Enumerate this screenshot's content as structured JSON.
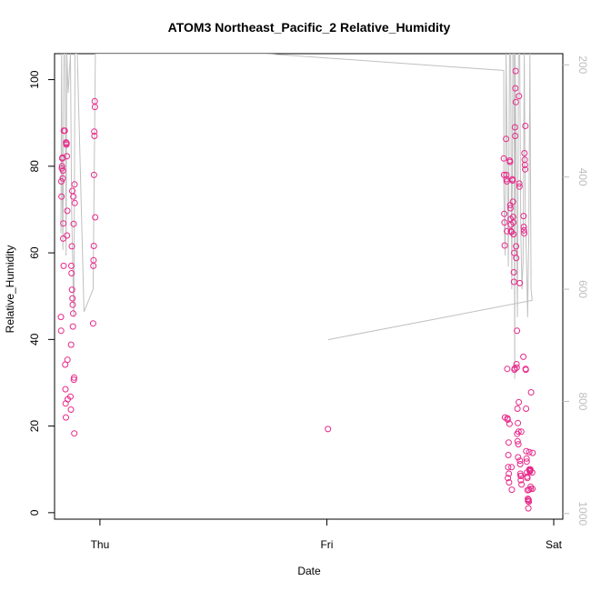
{
  "chart_data": {
    "type": "scatter",
    "title": "ATOM3 Northeast_Pacific_2 Relative_Humidity",
    "xlabel": "Date",
    "ylabel": "Relative_Humidity",
    "x_axis": {
      "type": "date",
      "ticks": [
        {
          "label": "Thu",
          "value": 0
        },
        {
          "label": "Fri",
          "value": 1
        },
        {
          "label": "Sat",
          "value": 2
        }
      ],
      "range": [
        -0.2,
        2.04
      ]
    },
    "y_axis_left": {
      "range": [
        -1.5,
        106
      ],
      "ticks": [
        0,
        20,
        40,
        60,
        80,
        100
      ]
    },
    "y_axis_right": {
      "description": "pressure, reversed",
      "range": [
        1010,
        180
      ],
      "ticks": [
        200,
        400,
        600,
        800,
        1000
      ],
      "color": "#bdbdbd"
    },
    "colors": {
      "points": "#e7298a",
      "pressure_line": "#c0c0c0"
    },
    "series": [
      {
        "kind": "points",
        "axis": "left",
        "points": [
          [
            -0.172,
            45.2
          ],
          [
            -0.171,
            42
          ],
          [
            -0.17,
            76.5
          ],
          [
            -0.169,
            73
          ],
          [
            -0.168,
            79.5
          ],
          [
            -0.167,
            80
          ],
          [
            -0.166,
            81.8
          ],
          [
            -0.165,
            82
          ],
          [
            -0.164,
            77.2
          ],
          [
            -0.163,
            79
          ],
          [
            -0.162,
            63.3
          ],
          [
            -0.161,
            66.8
          ],
          [
            -0.16,
            57
          ],
          [
            -0.159,
            88.2
          ],
          [
            -0.155,
            88.2
          ],
          [
            -0.153,
            34.2
          ],
          [
            -0.152,
            28.5
          ],
          [
            -0.151,
            25.2
          ],
          [
            -0.15,
            22
          ],
          [
            -0.149,
            85.5
          ],
          [
            -0.148,
            85
          ],
          [
            -0.147,
            85.3
          ],
          [
            -0.146,
            82.3
          ],
          [
            -0.145,
            64
          ],
          [
            -0.144,
            69.7
          ],
          [
            -0.143,
            35.3
          ],
          [
            -0.142,
            26.2
          ],
          [
            -0.13,
            26.8
          ],
          [
            -0.128,
            23.8
          ],
          [
            -0.127,
            38.8
          ],
          [
            -0.126,
            57
          ],
          [
            -0.125,
            55.3
          ],
          [
            -0.124,
            61.5
          ],
          [
            -0.123,
            51.5
          ],
          [
            -0.122,
            74.3
          ],
          [
            -0.121,
            49.5
          ],
          [
            -0.12,
            48
          ],
          [
            -0.119,
            43
          ],
          [
            -0.118,
            46
          ],
          [
            -0.117,
            73
          ],
          [
            -0.116,
            66.7
          ],
          [
            -0.115,
            30.7
          ],
          [
            -0.114,
            31.2
          ],
          [
            -0.113,
            18.3
          ],
          [
            -0.112,
            75.8
          ],
          [
            -0.111,
            71.5
          ],
          [
            -0.03,
            43.7
          ],
          [
            -0.029,
            57
          ],
          [
            -0.028,
            58.3
          ],
          [
            -0.027,
            61.6
          ],
          [
            -0.026,
            78
          ],
          [
            -0.025,
            88
          ],
          [
            -0.024,
            87
          ],
          [
            -0.023,
            95
          ],
          [
            -0.022,
            93.7
          ],
          [
            -0.021,
            68.2
          ],
          [
            1.005,
            19.3
          ],
          [
            1.78,
            81.8
          ],
          [
            1.781,
            78
          ],
          [
            1.782,
            69
          ],
          [
            1.783,
            67
          ],
          [
            1.784,
            61.7
          ],
          [
            1.785,
            22
          ],
          [
            1.79,
            86.3
          ],
          [
            1.791,
            78
          ],
          [
            1.792,
            77
          ],
          [
            1.793,
            76.5
          ],
          [
            1.794,
            65
          ],
          [
            1.795,
            33.2
          ],
          [
            1.796,
            21.8
          ],
          [
            1.797,
            21.5
          ],
          [
            1.798,
            8
          ],
          [
            1.799,
            10.5
          ],
          [
            1.8,
            13.3
          ],
          [
            1.801,
            16.2
          ],
          [
            1.802,
            9
          ],
          [
            1.803,
            7
          ],
          [
            1.805,
            20.5
          ],
          [
            1.806,
            81.3
          ],
          [
            1.807,
            81
          ],
          [
            1.808,
            71
          ],
          [
            1.809,
            70.3
          ],
          [
            1.81,
            67.8
          ],
          [
            1.811,
            66.5
          ],
          [
            1.812,
            65
          ],
          [
            1.813,
            64.8
          ],
          [
            1.814,
            10.5
          ],
          [
            1.815,
            5.3
          ],
          [
            1.818,
            77
          ],
          [
            1.819,
            76.7
          ],
          [
            1.82,
            71.8
          ],
          [
            1.821,
            68.3
          ],
          [
            1.822,
            67
          ],
          [
            1.823,
            64.3
          ],
          [
            1.824,
            55.5
          ],
          [
            1.825,
            53.3
          ],
          [
            1.826,
            60
          ],
          [
            1.827,
            33
          ],
          [
            1.828,
            33.3
          ],
          [
            1.829,
            89
          ],
          [
            1.83,
            87
          ],
          [
            1.831,
            98
          ],
          [
            1.832,
            102
          ],
          [
            1.833,
            94.8
          ],
          [
            1.834,
            61.5
          ],
          [
            1.835,
            58.8
          ],
          [
            1.836,
            34.3
          ],
          [
            1.837,
            33.5
          ],
          [
            1.838,
            42
          ],
          [
            1.839,
            18.2
          ],
          [
            1.84,
            24
          ],
          [
            1.841,
            16.5
          ],
          [
            1.842,
            20.7
          ],
          [
            1.843,
            12.8
          ],
          [
            1.844,
            15.8
          ],
          [
            1.845,
            18.7
          ],
          [
            1.846,
            25.5
          ],
          [
            1.847,
            96.2
          ],
          [
            1.848,
            76
          ],
          [
            1.849,
            75.3
          ],
          [
            1.85,
            53
          ],
          [
            1.851,
            12
          ],
          [
            1.852,
            11.2
          ],
          [
            1.853,
            9
          ],
          [
            1.854,
            8.5
          ],
          [
            1.855,
            7.5
          ],
          [
            1.856,
            8.5
          ],
          [
            1.857,
            18.7
          ],
          [
            1.858,
            6.5
          ],
          [
            1.866,
            36
          ],
          [
            1.867,
            68.5
          ],
          [
            1.868,
            66
          ],
          [
            1.869,
            65.2
          ],
          [
            1.87,
            64.5
          ],
          [
            1.871,
            83
          ],
          [
            1.872,
            81.5
          ],
          [
            1.873,
            80.3
          ],
          [
            1.874,
            79.3
          ],
          [
            1.875,
            89.3
          ],
          [
            1.876,
            33.2
          ],
          [
            1.877,
            33
          ],
          [
            1.878,
            24
          ],
          [
            1.879,
            14.2
          ],
          [
            1.88,
            12.5
          ],
          [
            1.881,
            11.8
          ],
          [
            1.882,
            9.3
          ],
          [
            1.883,
            8.3
          ],
          [
            1.884,
            8
          ],
          [
            1.885,
            5.2
          ],
          [
            1.886,
            3.2
          ],
          [
            1.887,
            2.7
          ],
          [
            1.888,
            1
          ],
          [
            1.889,
            3
          ],
          [
            1.89,
            2.5
          ],
          [
            1.891,
            5.3
          ],
          [
            1.892,
            14
          ],
          [
            1.893,
            10
          ],
          [
            1.894,
            9.7
          ],
          [
            1.895,
            9.5
          ],
          [
            1.896,
            9.8
          ],
          [
            1.897,
            10
          ],
          [
            1.898,
            6
          ],
          [
            1.899,
            5.5
          ],
          [
            1.9,
            27.8
          ],
          [
            1.905,
            9.3
          ],
          [
            1.906,
            5.5
          ],
          [
            1.907,
            13.8
          ]
        ]
      },
      {
        "kind": "line",
        "axis": "right",
        "points": [
          [
            -0.172,
            500
          ],
          [
            -0.169,
            180
          ],
          [
            -0.166,
            450
          ],
          [
            -0.163,
            530
          ],
          [
            -0.159,
            180
          ],
          [
            -0.153,
            180
          ],
          [
            -0.149,
            540
          ],
          [
            -0.146,
            180
          ],
          [
            -0.14,
            250
          ],
          [
            -0.13,
            180
          ],
          [
            -0.125,
            450
          ],
          [
            -0.118,
            600
          ],
          [
            -0.115,
            650
          ],
          [
            -0.11,
            180
          ],
          [
            -0.1,
            180
          ],
          [
            -0.07,
            640
          ],
          [
            -0.03,
            600
          ],
          [
            -0.02,
            180
          ],
          [
            0.73,
            180
          ],
          [
            1.78,
            210
          ],
          [
            1.78,
            420
          ],
          [
            1.783,
            500
          ],
          [
            1.786,
            540
          ],
          [
            1.79,
            180
          ],
          [
            1.795,
            380
          ],
          [
            1.8,
            560
          ],
          [
            1.805,
            180
          ],
          [
            1.81,
            180
          ],
          [
            1.815,
            600
          ],
          [
            1.82,
            180
          ],
          [
            1.825,
            180
          ],
          [
            1.828,
            760
          ],
          [
            1.83,
            180
          ],
          [
            1.835,
            400
          ],
          [
            1.84,
            650
          ],
          [
            1.845,
            180
          ],
          [
            1.85,
            180
          ],
          [
            1.855,
            500
          ],
          [
            1.86,
            600
          ],
          [
            1.865,
            550
          ],
          [
            1.87,
            180
          ],
          [
            1.875,
            480
          ],
          [
            1.88,
            550
          ],
          [
            1.885,
            650
          ],
          [
            1.89,
            500
          ],
          [
            1.895,
            180
          ],
          [
            1.9,
            600
          ],
          [
            1.905,
            620
          ],
          [
            1.005,
            690
          ]
        ]
      }
    ]
  }
}
